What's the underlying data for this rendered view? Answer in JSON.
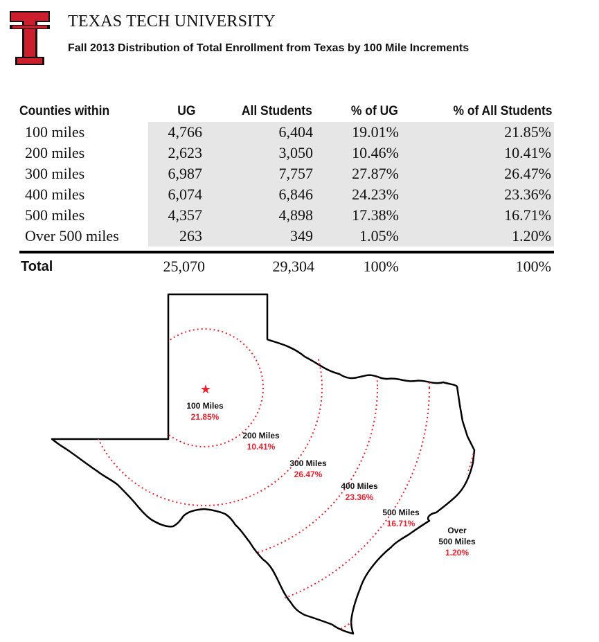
{
  "header": {
    "university": "TEXAS TECH UNIVERSITY",
    "subtitle": "Fall 2013 Distribution of Total Enrollment from Texas by 100 Mile Increments"
  },
  "table": {
    "columns": [
      "Counties within",
      "UG",
      "All Students",
      "% of UG",
      "% of All Students"
    ],
    "rows": [
      {
        "label": "100 miles",
        "ug": "4,766",
        "all": "6,404",
        "pct_ug": "19.01%",
        "pct_all": "21.85%"
      },
      {
        "label": "200 miles",
        "ug": "2,623",
        "all": "3,050",
        "pct_ug": "10.46%",
        "pct_all": "10.41%"
      },
      {
        "label": "300 miles",
        "ug": "6,987",
        "all": "7,757",
        "pct_ug": "27.87%",
        "pct_all": "26.47%"
      },
      {
        "label": "400 miles",
        "ug": "6,074",
        "all": "6,846",
        "pct_ug": "24.23%",
        "pct_all": "23.36%"
      },
      {
        "label": "500 miles",
        "ug": "4,357",
        "all": "4,898",
        "pct_ug": "17.38%",
        "pct_all": "16.71%"
      },
      {
        "label": "Over 500 miles",
        "ug": "263",
        "all": "349",
        "pct_ug": "1.05%",
        "pct_all": "1.20%"
      }
    ],
    "total": {
      "label": "Total",
      "ug": "25,070",
      "all": "29,304",
      "pct_ug": "100%",
      "pct_all": "100%"
    }
  },
  "map": {
    "labels": [
      {
        "name": "100 Miles",
        "pct": "21.85%"
      },
      {
        "name": "200 Miles",
        "pct": "10.41%"
      },
      {
        "name": "300 Miles",
        "pct": "26.47%"
      },
      {
        "name": "400 Miles",
        "pct": "23.36%"
      },
      {
        "name": "500 Miles",
        "pct": "16.71%"
      },
      {
        "name_line1": "Over",
        "name_line2": "500 Miles",
        "pct": "1.20%"
      }
    ],
    "accent_color": "#e8222f",
    "outline_color": "#000000"
  }
}
